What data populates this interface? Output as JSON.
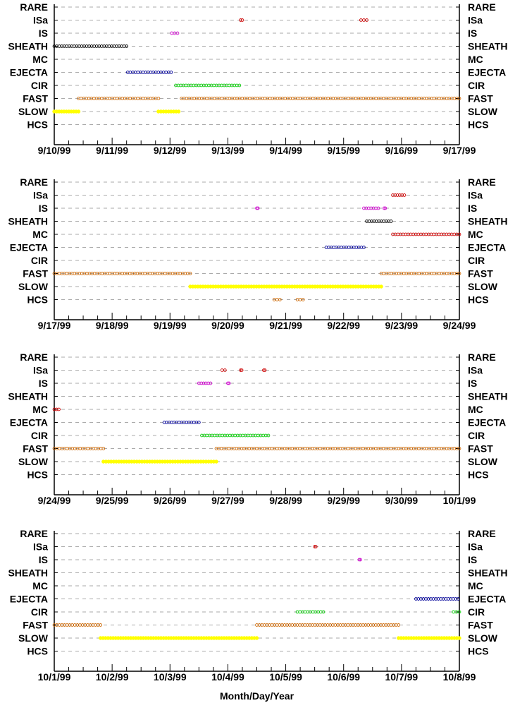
{
  "categories": [
    "RARE",
    "ISa",
    "IS",
    "SHEATH",
    "MC",
    "EJECTA",
    "CIR",
    "FAST",
    "SLOW",
    "HCS"
  ],
  "colors": {
    "ISa": "#cc0000",
    "IS": "#cc00cc",
    "SHEATH": "#000000",
    "MC": "#cc0000",
    "EJECTA": "#000099",
    "CIR": "#00cc00",
    "FAST": "#cc6600",
    "SLOW": "#ffff00",
    "HCS": "#cc6600",
    "grid": "#aaaaaa",
    "axis": "#000000"
  },
  "xlabel": "Month/Day/Year",
  "chart_data": [
    {
      "type": "scatter",
      "x_range": [
        "9/10/99",
        "9/17/99"
      ],
      "ticks": [
        "9/10/99",
        "9/11/99",
        "9/12/99",
        "9/13/99",
        "9/14/99",
        "9/15/99",
        "9/16/99",
        "9/17/99"
      ],
      "segments": [
        {
          "category": "ISa",
          "start": 3.22,
          "end": 3.25
        },
        {
          "category": "ISa",
          "start": 5.3,
          "end": 5.4
        },
        {
          "category": "IS",
          "start": 2.03,
          "end": 2.13
        },
        {
          "category": "SHEATH",
          "start": 0.0,
          "end": 1.25
        },
        {
          "category": "EJECTA",
          "start": 1.27,
          "end": 2.02
        },
        {
          "category": "CIR",
          "start": 2.1,
          "end": 3.2
        },
        {
          "category": "FAST",
          "start": 0.42,
          "end": 1.8
        },
        {
          "category": "FAST",
          "start": 2.2,
          "end": 7.0
        },
        {
          "category": "SLOW",
          "start": 0.0,
          "end": 0.42
        },
        {
          "category": "SLOW",
          "start": 1.8,
          "end": 2.15
        }
      ]
    },
    {
      "type": "scatter",
      "x_range": [
        "9/17/99",
        "9/24/99"
      ],
      "ticks": [
        "9/17/99",
        "9/18/99",
        "9/19/99",
        "9/20/99",
        "9/21/99",
        "9/22/99",
        "9/23/99",
        "9/24/99"
      ],
      "segments": [
        {
          "category": "ISa",
          "start": 5.85,
          "end": 6.05
        },
        {
          "category": "IS",
          "start": 3.5,
          "end": 3.52
        },
        {
          "category": "IS",
          "start": 5.35,
          "end": 5.6
        },
        {
          "category": "IS",
          "start": 5.7,
          "end": 5.72
        },
        {
          "category": "SHEATH",
          "start": 5.4,
          "end": 5.82
        },
        {
          "category": "MC",
          "start": 5.85,
          "end": 7.0
        },
        {
          "category": "EJECTA",
          "start": 4.7,
          "end": 5.35
        },
        {
          "category": "FAST",
          "start": 0.0,
          "end": 2.35
        },
        {
          "category": "FAST",
          "start": 5.65,
          "end": 7.0
        },
        {
          "category": "SLOW",
          "start": 2.35,
          "end": 5.65
        },
        {
          "category": "HCS",
          "start": 3.8,
          "end": 3.9
        },
        {
          "category": "HCS",
          "start": 4.2,
          "end": 4.3
        }
      ]
    },
    {
      "type": "scatter",
      "x_range": [
        "9/24/99",
        "10/1/99"
      ],
      "ticks": [
        "9/24/99",
        "9/25/99",
        "9/26/99",
        "9/27/99",
        "9/28/99",
        "9/29/99",
        "9/30/99",
        "10/1/99"
      ],
      "segments": [
        {
          "category": "ISa",
          "start": 2.9,
          "end": 2.95
        },
        {
          "category": "ISa",
          "start": 3.22,
          "end": 3.24
        },
        {
          "category": "ISa",
          "start": 3.62,
          "end": 3.64
        },
        {
          "category": "IS",
          "start": 2.5,
          "end": 2.7
        },
        {
          "category": "IS",
          "start": 3.0,
          "end": 3.02
        },
        {
          "category": "MC",
          "start": 0.0,
          "end": 0.08
        },
        {
          "category": "EJECTA",
          "start": 1.9,
          "end": 2.5
        },
        {
          "category": "CIR",
          "start": 2.55,
          "end": 3.7
        },
        {
          "category": "FAST",
          "start": 0.0,
          "end": 0.85
        },
        {
          "category": "FAST",
          "start": 2.8,
          "end": 7.0
        },
        {
          "category": "SLOW",
          "start": 0.85,
          "end": 2.8
        }
      ]
    },
    {
      "type": "scatter",
      "x_range": [
        "10/1/99",
        "10/8/99"
      ],
      "ticks": [
        "10/1/99",
        "10/2/99",
        "10/3/99",
        "10/4/99",
        "10/5/99",
        "10/6/99",
        "10/7/99",
        "10/8/99"
      ],
      "segments": [
        {
          "category": "ISa",
          "start": 4.5,
          "end": 4.52
        },
        {
          "category": "IS",
          "start": 5.27,
          "end": 5.29
        },
        {
          "category": "EJECTA",
          "start": 6.25,
          "end": 6.98
        },
        {
          "category": "CIR",
          "start": 4.2,
          "end": 4.65
        },
        {
          "category": "CIR",
          "start": 6.9,
          "end": 7.0
        },
        {
          "category": "FAST",
          "start": 0.0,
          "end": 0.8
        },
        {
          "category": "FAST",
          "start": 3.5,
          "end": 5.95
        },
        {
          "category": "SLOW",
          "start": 0.8,
          "end": 3.5
        },
        {
          "category": "SLOW",
          "start": 5.95,
          "end": 7.0
        }
      ]
    }
  ]
}
